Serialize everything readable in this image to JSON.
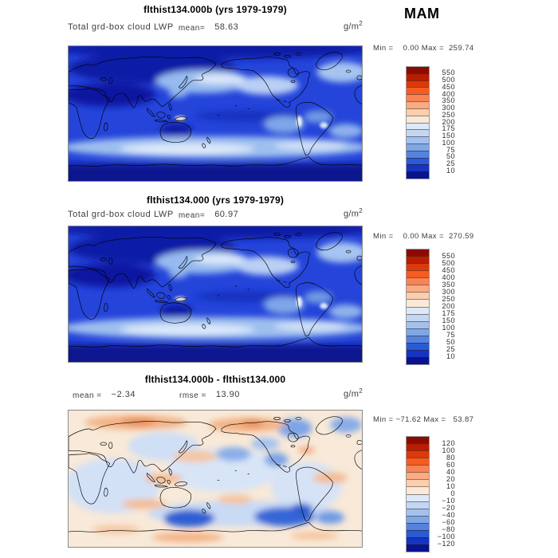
{
  "page": {
    "season_label": "MAM",
    "units_base": "g/m",
    "units_exp": "2"
  },
  "chart_data": [
    {
      "type": "heatmap",
      "subtype": "filled-contour global latitude-longitude map, Pacific-centered",
      "title": "flthist134.000b (yrs 1979-1979)",
      "variable": "Total grd-box cloud LWP",
      "stats": {
        "mean_label": "mean=",
        "mean": "58.63",
        "rmse_label": "",
        "rmse": ""
      },
      "units_base": "g/m",
      "units_exp": "2",
      "min_label": "Min =",
      "min": "0.00",
      "max_label": "Max =",
      "max": "259.74",
      "minmax_text": "Min =    0.00 Max =  259.74",
      "colorbar": {
        "position": "right",
        "levels": [
          "550",
          "500",
          "450",
          "400",
          "350",
          "300",
          "250",
          "200",
          "175",
          "150",
          "100",
          "75",
          "50",
          "25",
          "10"
        ],
        "colors": [
          "#8c0b01",
          "#b91e02",
          "#dc3a0b",
          "#f65c21",
          "#f98355",
          "#fbaa82",
          "#fcceae",
          "#fbe9d8",
          "#dce9f9",
          "#c3d7f3",
          "#a2c1ee",
          "#7ea7e6",
          "#5383de",
          "#2a5ad6",
          "#1534c2",
          "#091290"
        ]
      }
    },
    {
      "type": "heatmap",
      "subtype": "filled-contour global latitude-longitude map, Pacific-centered",
      "title": "flthist134.000 (yrs 1979-1979)",
      "variable": "Total grd-box cloud LWP",
      "stats": {
        "mean_label": "mean=",
        "mean": "60.97",
        "rmse_label": "",
        "rmse": ""
      },
      "units_base": "g/m",
      "units_exp": "2",
      "min_label": "Min =",
      "min": "0.00",
      "max_label": "Max =",
      "max": "270.59",
      "minmax_text": "Min =    0.00 Max =  270.59",
      "colorbar": {
        "position": "right",
        "levels": [
          "550",
          "500",
          "450",
          "400",
          "350",
          "300",
          "250",
          "200",
          "175",
          "150",
          "100",
          "75",
          "50",
          "25",
          "10"
        ],
        "colors": [
          "#8c0b01",
          "#b91e02",
          "#dc3a0b",
          "#f65c21",
          "#f98355",
          "#fbaa82",
          "#fcceae",
          "#fbe9d8",
          "#dce9f9",
          "#c3d7f3",
          "#a2c1ee",
          "#7ea7e6",
          "#5383de",
          "#2a5ad6",
          "#1534c2",
          "#091290"
        ]
      }
    },
    {
      "type": "heatmap",
      "subtype": "filled-contour difference map, Pacific-centered",
      "title": "flthist134.000b - flthist134.000",
      "variable": "",
      "stats": {
        "mean_label": "mean =",
        "mean": "−2.34",
        "rmse_label": "rmse =",
        "rmse": "13.90"
      },
      "units_base": "g/m",
      "units_exp": "2",
      "min_label": "Min =",
      "min": "−71.62",
      "max_label": "Max =",
      "max": "53.87",
      "minmax_text": "Min = −71.62 Max =   53.87",
      "colorbar": {
        "position": "right",
        "levels": [
          "120",
          "100",
          "80",
          "60",
          "40",
          "20",
          "10",
          "0",
          "−10",
          "−20",
          "−40",
          "−60",
          "−80",
          "−100",
          "−120"
        ],
        "colors": [
          "#8c0b01",
          "#b91e02",
          "#dc3a0b",
          "#f65c21",
          "#f98355",
          "#fbaa82",
          "#fcceae",
          "#fbe9d8",
          "#dce9f9",
          "#c3d7f3",
          "#a2c1ee",
          "#7ea7e6",
          "#5383de",
          "#2a5ad6",
          "#1534c2",
          "#091290"
        ]
      }
    }
  ]
}
